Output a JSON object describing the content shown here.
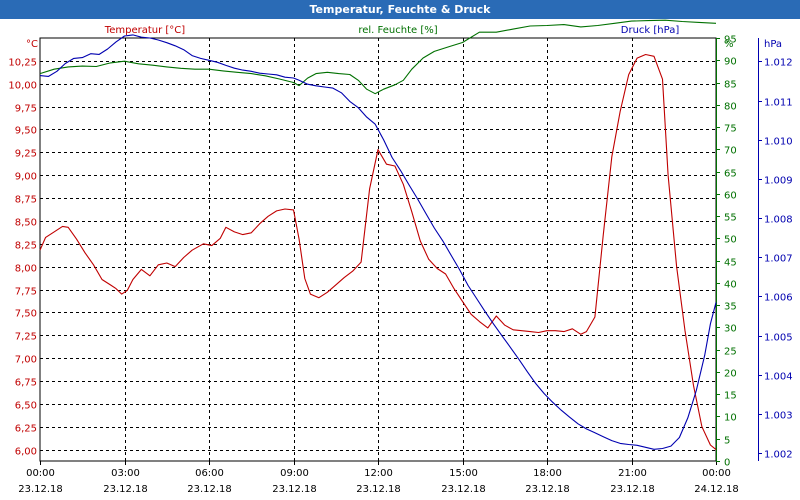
{
  "window": {
    "title": "Temperatur, Feuchte & Druck"
  },
  "colors": {
    "temperature": "#c00000",
    "humidity": "#007000",
    "pressure": "#0000b0",
    "titlebar": "#2a6bb6"
  },
  "chart_data": {
    "type": "line",
    "title": "Temperatur, Feuchte & Druck",
    "x_hours_range": [
      0,
      24
    ],
    "x_ticks": [
      {
        "time": "00:00",
        "date": "23.12.18",
        "hour": 0
      },
      {
        "time": "03:00",
        "date": "23.12.18",
        "hour": 3
      },
      {
        "time": "06:00",
        "date": "23.12.18",
        "hour": 6
      },
      {
        "time": "09:00",
        "date": "23.12.18",
        "hour": 9
      },
      {
        "time": "12:00",
        "date": "23.12.18",
        "hour": 12
      },
      {
        "time": "15:00",
        "date": "23.12.18",
        "hour": 15
      },
      {
        "time": "18:00",
        "date": "23.12.18",
        "hour": 18
      },
      {
        "time": "21:00",
        "date": "23.12.18",
        "hour": 21
      },
      {
        "time": "00:00",
        "date": "24.12.18",
        "hour": 24
      }
    ],
    "axes": {
      "temperature": {
        "label": "Temperatur [°C]",
        "unit": "°C",
        "range": [
          5.875,
          10.5
        ],
        "ticks": [
          "6,00",
          "6,25",
          "6,50",
          "6,75",
          "7,00",
          "7,25",
          "7,50",
          "7,75",
          "8,00",
          "8,25",
          "8,50",
          "8,75",
          "9,00",
          "9,25",
          "9,50",
          "9,75",
          "10,00",
          "10,25"
        ]
      },
      "humidity": {
        "label": "rel. Feuchte [%]",
        "unit": "%",
        "range": [
          0,
          95
        ],
        "ticks": [
          "0",
          "5",
          "10",
          "15",
          "20",
          "25",
          "30",
          "35",
          "40",
          "45",
          "50",
          "55",
          "60",
          "65",
          "70",
          "75",
          "80",
          "85",
          "90",
          "95"
        ]
      },
      "pressure": {
        "label": "Druck [hPa]",
        "unit": "hPa",
        "range": [
          1.0018,
          1.0126
        ],
        "ticks": [
          "1.002",
          "1.003",
          "1.004",
          "1.005",
          "1.006",
          "1.007",
          "1.008",
          "1.009",
          "1.010",
          "1.011",
          "1.012"
        ]
      }
    },
    "series": [
      {
        "name": "Temperatur [°C]",
        "axis": "temperature",
        "points": [
          [
            0,
            8.18
          ],
          [
            0.2,
            8.32
          ],
          [
            0.5,
            8.38
          ],
          [
            0.8,
            8.44
          ],
          [
            1.0,
            8.43
          ],
          [
            1.3,
            8.3
          ],
          [
            1.6,
            8.15
          ],
          [
            1.9,
            8.02
          ],
          [
            2.2,
            7.86
          ],
          [
            2.5,
            7.8
          ],
          [
            2.7,
            7.76
          ],
          [
            2.9,
            7.7
          ],
          [
            3.1,
            7.74
          ],
          [
            3.3,
            7.86
          ],
          [
            3.6,
            7.97
          ],
          [
            3.9,
            7.9
          ],
          [
            4.2,
            8.02
          ],
          [
            4.5,
            8.04
          ],
          [
            4.8,
            8.0
          ],
          [
            5.1,
            8.1
          ],
          [
            5.4,
            8.18
          ],
          [
            5.8,
            8.25
          ],
          [
            6.1,
            8.23
          ],
          [
            6.4,
            8.31
          ],
          [
            6.6,
            8.43
          ],
          [
            6.9,
            8.38
          ],
          [
            7.2,
            8.35
          ],
          [
            7.5,
            8.37
          ],
          [
            7.8,
            8.47
          ],
          [
            8.1,
            8.55
          ],
          [
            8.4,
            8.61
          ],
          [
            8.7,
            8.63
          ],
          [
            9.0,
            8.62
          ],
          [
            9.2,
            8.3
          ],
          [
            9.4,
            7.87
          ],
          [
            9.6,
            7.7
          ],
          [
            9.9,
            7.66
          ],
          [
            10.2,
            7.72
          ],
          [
            10.5,
            7.8
          ],
          [
            10.8,
            7.88
          ],
          [
            11.1,
            7.95
          ],
          [
            11.4,
            8.05
          ],
          [
            11.7,
            8.85
          ],
          [
            12.0,
            9.28
          ],
          [
            12.3,
            9.12
          ],
          [
            12.6,
            9.1
          ],
          [
            12.9,
            8.9
          ],
          [
            13.2,
            8.6
          ],
          [
            13.5,
            8.28
          ],
          [
            13.8,
            8.08
          ],
          [
            14.1,
            7.98
          ],
          [
            14.4,
            7.92
          ],
          [
            14.7,
            7.76
          ],
          [
            15.0,
            7.62
          ],
          [
            15.3,
            7.48
          ],
          [
            15.6,
            7.4
          ],
          [
            15.9,
            7.33
          ],
          [
            16.2,
            7.46
          ],
          [
            16.5,
            7.36
          ],
          [
            16.8,
            7.31
          ],
          [
            17.1,
            7.3
          ],
          [
            17.4,
            7.29
          ],
          [
            17.7,
            7.28
          ],
          [
            18.0,
            7.3
          ],
          [
            18.3,
            7.3
          ],
          [
            18.6,
            7.29
          ],
          [
            18.9,
            7.32
          ],
          [
            19.2,
            7.26
          ],
          [
            19.4,
            7.29
          ],
          [
            19.7,
            7.45
          ],
          [
            20.0,
            8.35
          ],
          [
            20.3,
            9.2
          ],
          [
            20.6,
            9.7
          ],
          [
            20.9,
            10.1
          ],
          [
            21.2,
            10.28
          ],
          [
            21.5,
            10.32
          ],
          [
            21.8,
            10.3
          ],
          [
            22.1,
            10.05
          ],
          [
            22.3,
            9.0
          ],
          [
            22.6,
            8.0
          ],
          [
            22.9,
            7.3
          ],
          [
            23.2,
            6.7
          ],
          [
            23.5,
            6.25
          ],
          [
            23.8,
            6.05
          ],
          [
            24.0,
            6.0
          ]
        ]
      },
      {
        "name": "rel. Feuchte [%]",
        "axis": "humidity",
        "points": [
          [
            0,
            87
          ],
          [
            0.5,
            88
          ],
          [
            1.0,
            88.5
          ],
          [
            1.5,
            88.7
          ],
          [
            2.0,
            88.6
          ],
          [
            2.5,
            89.4
          ],
          [
            3.0,
            89.8
          ],
          [
            3.5,
            89.2
          ],
          [
            4.0,
            88.9
          ],
          [
            4.5,
            88.5
          ],
          [
            5.0,
            88.2
          ],
          [
            5.5,
            88.0
          ],
          [
            6.0,
            88.0
          ],
          [
            6.5,
            87.6
          ],
          [
            7.0,
            87.3
          ],
          [
            7.5,
            87.0
          ],
          [
            8.0,
            86.5
          ],
          [
            8.5,
            85.8
          ],
          [
            9.0,
            85.0
          ],
          [
            9.2,
            84.3
          ],
          [
            9.5,
            86.0
          ],
          [
            9.8,
            87.0
          ],
          [
            10.2,
            87.3
          ],
          [
            10.6,
            87.0
          ],
          [
            11.0,
            86.8
          ],
          [
            11.3,
            85.5
          ],
          [
            11.6,
            83.5
          ],
          [
            11.9,
            82.5
          ],
          [
            12.2,
            83.5
          ],
          [
            12.6,
            84.5
          ],
          [
            12.9,
            85.5
          ],
          [
            13.2,
            88.0
          ],
          [
            13.6,
            90.5
          ],
          [
            14.0,
            92.0
          ],
          [
            14.5,
            93.0
          ],
          [
            15.0,
            94.0
          ],
          [
            15.6,
            96.3
          ],
          [
            16.2,
            96.3
          ],
          [
            16.8,
            97.0
          ],
          [
            17.4,
            97.7
          ],
          [
            18.0,
            97.8
          ],
          [
            18.6,
            98.0
          ],
          [
            19.2,
            97.5
          ],
          [
            19.8,
            97.8
          ],
          [
            20.4,
            98.3
          ],
          [
            21.0,
            98.8
          ],
          [
            21.6,
            98.9
          ],
          [
            22.2,
            99.0
          ],
          [
            22.8,
            98.7
          ],
          [
            23.4,
            98.5
          ],
          [
            24.0,
            98.3
          ]
        ]
      },
      {
        "name": "Druck [hPa]",
        "axis": "pressure",
        "points": [
          [
            0,
            1.01164
          ],
          [
            0.3,
            1.01162
          ],
          [
            0.6,
            1.01175
          ],
          [
            0.9,
            1.01195
          ],
          [
            1.2,
            1.01208
          ],
          [
            1.5,
            1.0121
          ],
          [
            1.8,
            1.0122
          ],
          [
            2.1,
            1.01218
          ],
          [
            2.4,
            1.01232
          ],
          [
            2.7,
            1.0125
          ],
          [
            3.0,
            1.01265
          ],
          [
            3.3,
            1.01268
          ],
          [
            3.6,
            1.01262
          ],
          [
            3.9,
            1.0126
          ],
          [
            4.2,
            1.01255
          ],
          [
            4.5,
            1.01248
          ],
          [
            4.8,
            1.0124
          ],
          [
            5.1,
            1.0123
          ],
          [
            5.4,
            1.01215
          ],
          [
            5.7,
            1.01208
          ],
          [
            6.0,
            1.01203
          ],
          [
            6.3,
            1.01198
          ],
          [
            6.6,
            1.0119
          ],
          [
            6.9,
            1.01183
          ],
          [
            7.2,
            1.01178
          ],
          [
            7.5,
            1.01175
          ],
          [
            7.8,
            1.0117
          ],
          [
            8.1,
            1.01168
          ],
          [
            8.4,
            1.01166
          ],
          [
            8.7,
            1.0116
          ],
          [
            9.0,
            1.01158
          ],
          [
            9.2,
            1.01152
          ],
          [
            9.5,
            1.01142
          ],
          [
            9.8,
            1.01138
          ],
          [
            10.1,
            1.01135
          ],
          [
            10.4,
            1.01132
          ],
          [
            10.7,
            1.0112
          ],
          [
            11.0,
            1.01098
          ],
          [
            11.3,
            1.01082
          ],
          [
            11.6,
            1.01058
          ],
          [
            11.9,
            1.0104
          ],
          [
            12.2,
            1.01
          ],
          [
            12.5,
            1.00955
          ],
          [
            12.8,
            1.00922
          ],
          [
            13.1,
            1.00885
          ],
          [
            13.4,
            1.0085
          ],
          [
            13.7,
            1.00812
          ],
          [
            14.0,
            1.00775
          ],
          [
            14.3,
            1.00742
          ],
          [
            14.6,
            1.00705
          ],
          [
            14.9,
            1.00668
          ],
          [
            15.2,
            1.00628
          ],
          [
            15.5,
            1.00595
          ],
          [
            15.8,
            1.00562
          ],
          [
            16.1,
            1.0053
          ],
          [
            16.4,
            1.005
          ],
          [
            16.7,
            1.0047
          ],
          [
            17.0,
            1.0044
          ],
          [
            17.3,
            1.00408
          ],
          [
            17.6,
            1.00378
          ],
          [
            17.9,
            1.00352
          ],
          [
            18.2,
            1.0033
          ],
          [
            18.5,
            1.0031
          ],
          [
            18.8,
            1.00292
          ],
          [
            19.1,
            1.00275
          ],
          [
            19.4,
            1.00262
          ],
          [
            19.7,
            1.00252
          ],
          [
            20.0,
            1.00242
          ],
          [
            20.3,
            1.00232
          ],
          [
            20.6,
            1.00225
          ],
          [
            20.9,
            1.00222
          ],
          [
            21.2,
            1.0022
          ],
          [
            21.5,
            1.00215
          ],
          [
            21.8,
            1.0021
          ],
          [
            22.1,
            1.00212
          ],
          [
            22.4,
            1.00218
          ],
          [
            22.7,
            1.0024
          ],
          [
            23.0,
            1.0029
          ],
          [
            23.3,
            1.0036
          ],
          [
            23.6,
            1.0045
          ],
          [
            23.8,
            1.0053
          ],
          [
            24.0,
            1.00585
          ]
        ]
      }
    ]
  }
}
